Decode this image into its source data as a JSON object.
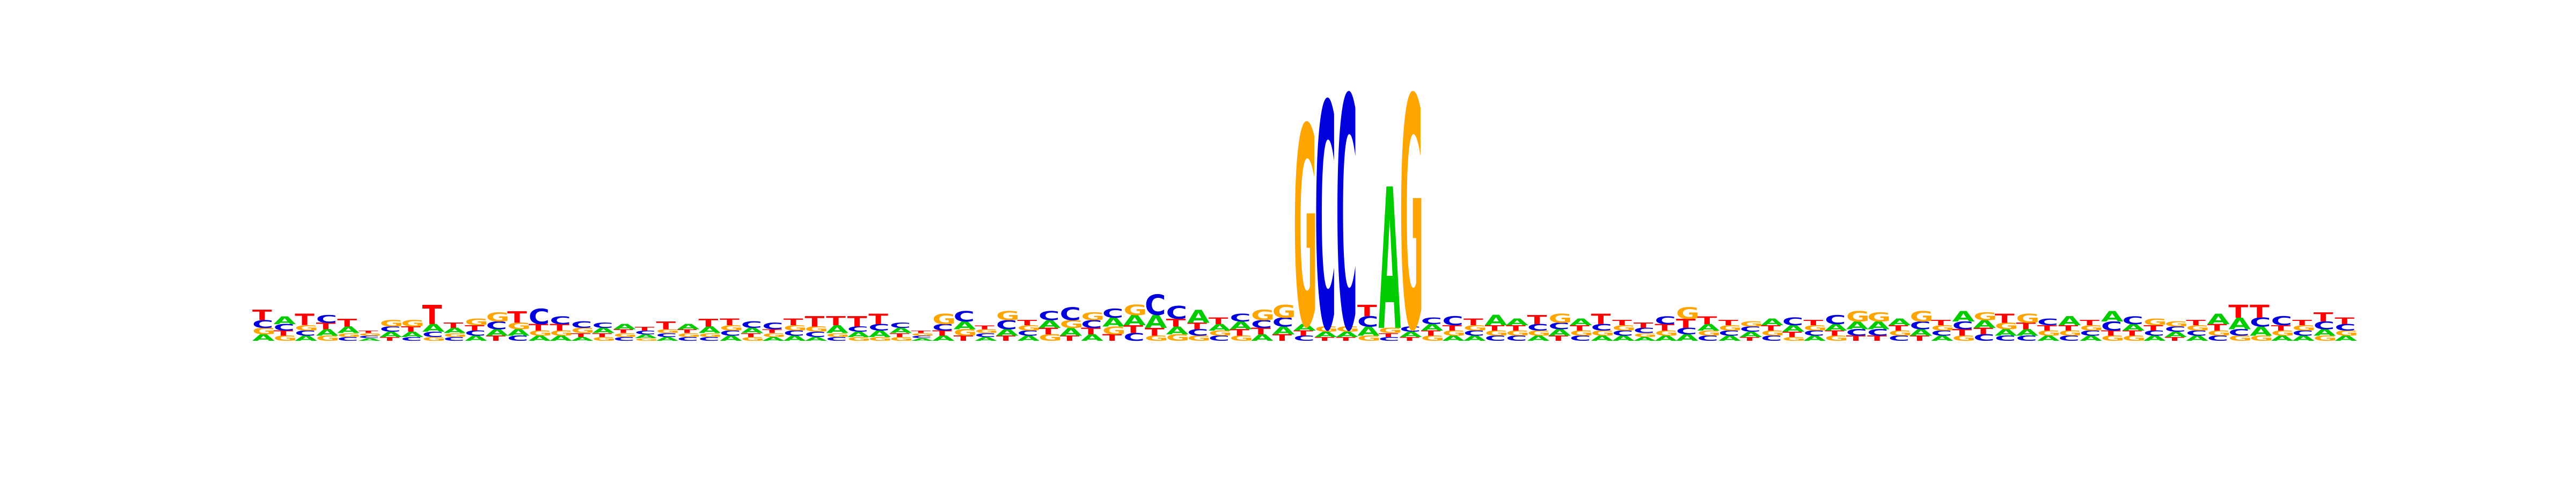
{
  "sequence_logo": {
    "alphabet": [
      "A",
      "C",
      "G",
      "T"
    ],
    "colors": {
      "A": "#00cc00",
      "C": "#0000dd",
      "G": "#ffa500",
      "T": "#ff0000"
    },
    "max_bits": 2,
    "positions": [
      {
        "A": 0.05,
        "C": 0.06,
        "G": 0.05,
        "T": 0.08
      },
      {
        "A": 0.06,
        "C": 0.05,
        "G": 0.04,
        "T": 0.04
      },
      {
        "A": 0.04,
        "C": 0.04,
        "G": 0.04,
        "T": 0.09
      },
      {
        "A": 0.05,
        "C": 0.06,
        "G": 0.04,
        "T": 0.05
      },
      {
        "A": 0.05,
        "C": 0.03,
        "G": 0.03,
        "T": 0.06
      },
      {
        "A": 0.02,
        "C": 0.02,
        "G": 0.02,
        "T": 0.02
      },
      {
        "A": 0.04,
        "C": 0.04,
        "G": 0.05,
        "T": 0.03
      },
      {
        "A": 0.04,
        "C": 0.03,
        "G": 0.05,
        "T": 0.04
      },
      {
        "A": 0.06,
        "C": 0.04,
        "G": 0.03,
        "T": 0.15
      },
      {
        "A": 0.04,
        "C": 0.03,
        "G": 0.03,
        "T": 0.04
      },
      {
        "A": 0.04,
        "C": 0.04,
        "G": 0.05,
        "T": 0.04
      },
      {
        "A": 0.05,
        "C": 0.06,
        "G": 0.07,
        "T": 0.04
      },
      {
        "A": 0.05,
        "C": 0.04,
        "G": 0.05,
        "T": 0.09
      },
      {
        "A": 0.04,
        "C": 0.12,
        "G": 0.04,
        "T": 0.05
      },
      {
        "A": 0.04,
        "C": 0.06,
        "G": 0.04,
        "T": 0.05
      },
      {
        "A": 0.03,
        "C": 0.05,
        "G": 0.04,
        "T": 0.03
      },
      {
        "A": 0.04,
        "C": 0.04,
        "G": 0.03,
        "T": 0.03
      },
      {
        "A": 0.04,
        "C": 0.03,
        "G": 0.03,
        "T": 0.03
      },
      {
        "A": 0.03,
        "C": 0.03,
        "G": 0.02,
        "T": 0.03
      },
      {
        "A": 0.03,
        "C": 0.03,
        "G": 0.03,
        "T": 0.06
      },
      {
        "A": 0.04,
        "C": 0.03,
        "G": 0.03,
        "T": 0.03
      },
      {
        "A": 0.05,
        "C": 0.03,
        "G": 0.03,
        "T": 0.06
      },
      {
        "A": 0.04,
        "C": 0.04,
        "G": 0.04,
        "T": 0.05
      },
      {
        "A": 0.04,
        "C": 0.05,
        "G": 0.03,
        "T": 0.03
      },
      {
        "A": 0.03,
        "C": 0.05,
        "G": 0.03,
        "T": 0.03
      },
      {
        "A": 0.04,
        "C": 0.04,
        "G": 0.04,
        "T": 0.05
      },
      {
        "A": 0.03,
        "C": 0.04,
        "G": 0.04,
        "T": 0.08
      },
      {
        "A": 0.06,
        "C": 0.03,
        "G": 0.03,
        "T": 0.07
      },
      {
        "A": 0.04,
        "C": 0.04,
        "G": 0.03,
        "T": 0.08
      },
      {
        "A": 0.05,
        "C": 0.05,
        "G": 0.03,
        "T": 0.08
      },
      {
        "A": 0.04,
        "C": 0.04,
        "G": 0.03,
        "T": 0.03
      },
      {
        "A": 0.02,
        "C": 0.02,
        "G": 0.02,
        "T": 0.02
      },
      {
        "A": 0.04,
        "C": 0.05,
        "G": 0.08,
        "T": 0.04
      },
      {
        "A": 0.06,
        "C": 0.08,
        "G": 0.05,
        "T": 0.04
      },
      {
        "A": 0.03,
        "C": 0.03,
        "G": 0.03,
        "T": 0.03
      },
      {
        "A": 0.05,
        "C": 0.07,
        "G": 0.07,
        "T": 0.04
      },
      {
        "A": 0.04,
        "C": 0.04,
        "G": 0.04,
        "T": 0.04
      },
      {
        "A": 0.06,
        "C": 0.07,
        "G": 0.05,
        "T": 0.05
      },
      {
        "A": 0.06,
        "C": 0.1,
        "G": 0.06,
        "T": 0.04
      },
      {
        "A": 0.05,
        "C": 0.06,
        "G": 0.06,
        "T": 0.05
      },
      {
        "A": 0.07,
        "C": 0.07,
        "G": 0.06,
        "T": 0.05
      },
      {
        "A": 0.08,
        "C": 0.06,
        "G": 0.08,
        "T": 0.06
      },
      {
        "A": 0.1,
        "C": 0.16,
        "G": 0.04,
        "T": 0.06
      },
      {
        "A": 0.06,
        "C": 0.1,
        "G": 0.05,
        "T": 0.06
      },
      {
        "A": 0.1,
        "C": 0.05,
        "G": 0.04,
        "T": 0.05
      },
      {
        "A": 0.05,
        "C": 0.04,
        "G": 0.04,
        "T": 0.05
      },
      {
        "A": 0.06,
        "C": 0.06,
        "G": 0.04,
        "T": 0.05
      },
      {
        "A": 0.05,
        "C": 0.06,
        "G": 0.08,
        "T": 0.05
      },
      {
        "A": 0.06,
        "C": 0.07,
        "G": 0.1,
        "T": 0.05
      },
      {
        "A": 0.05,
        "C": 0.04,
        "G": 1.55,
        "T": 0.04
      },
      {
        "A": 0.04,
        "C": 1.75,
        "G": 0.04,
        "T": 0.03
      },
      {
        "A": 0.04,
        "C": 1.8,
        "G": 0.04,
        "T": 0.03
      },
      {
        "A": 0.07,
        "C": 0.08,
        "G": 0.04,
        "T": 0.09
      },
      {
        "A": 1.1,
        "C": 0.03,
        "G": 0.04,
        "T": 0.03
      },
      {
        "A": 0.04,
        "C": 0.04,
        "G": 1.8,
        "T": 0.03
      },
      {
        "A": 0.05,
        "C": 0.05,
        "G": 0.04,
        "T": 0.04
      },
      {
        "A": 0.04,
        "C": 0.07,
        "G": 0.04,
        "T": 0.04
      },
      {
        "A": 0.04,
        "C": 0.04,
        "G": 0.04,
        "T": 0.05
      },
      {
        "A": 0.08,
        "C": 0.04,
        "G": 0.04,
        "T": 0.04
      },
      {
        "A": 0.05,
        "C": 0.04,
        "G": 0.04,
        "T": 0.04
      },
      {
        "A": 0.04,
        "C": 0.05,
        "G": 0.04,
        "T": 0.07
      },
      {
        "A": 0.05,
        "C": 0.05,
        "G": 0.07,
        "T": 0.04
      },
      {
        "A": 0.05,
        "C": 0.04,
        "G": 0.04,
        "T": 0.04
      },
      {
        "A": 0.04,
        "C": 0.05,
        "G": 0.04,
        "T": 0.08
      },
      {
        "A": 0.04,
        "C": 0.04,
        "G": 0.04,
        "T": 0.04
      },
      {
        "A": 0.03,
        "C": 0.04,
        "G": 0.03,
        "T": 0.04
      },
      {
        "A": 0.04,
        "C": 0.06,
        "G": 0.04,
        "T": 0.05
      },
      {
        "A": 0.05,
        "C": 0.05,
        "G": 0.09,
        "T": 0.07
      },
      {
        "A": 0.05,
        "C": 0.04,
        "G": 0.04,
        "T": 0.06
      },
      {
        "A": 0.04,
        "C": 0.04,
        "G": 0.04,
        "T": 0.04
      },
      {
        "A": 0.04,
        "C": 0.04,
        "G": 0.04,
        "T": 0.03
      },
      {
        "A": 0.05,
        "C": 0.04,
        "G": 0.04,
        "T": 0.04
      },
      {
        "A": 0.05,
        "C": 0.06,
        "G": 0.03,
        "T": 0.04
      },
      {
        "A": 0.04,
        "C": 0.04,
        "G": 0.04,
        "T": 0.04
      },
      {
        "A": 0.05,
        "C": 0.07,
        "G": 0.04,
        "T": 0.04
      },
      {
        "A": 0.06,
        "C": 0.05,
        "G": 0.08,
        "T": 0.04
      },
      {
        "A": 0.06,
        "C": 0.05,
        "G": 0.07,
        "T": 0.04
      },
      {
        "A": 0.05,
        "C": 0.04,
        "G": 0.04,
        "T": 0.04
      },
      {
        "A": 0.05,
        "C": 0.06,
        "G": 0.08,
        "T": 0.04
      },
      {
        "A": 0.04,
        "C": 0.04,
        "G": 0.04,
        "T": 0.04
      },
      {
        "A": 0.08,
        "C": 0.06,
        "G": 0.04,
        "T": 0.05
      },
      {
        "A": 0.06,
        "C": 0.05,
        "G": 0.06,
        "T": 0.05
      },
      {
        "A": 0.05,
        "C": 0.04,
        "G": 0.05,
        "T": 0.07
      },
      {
        "A": 0.05,
        "C": 0.04,
        "G": 0.07,
        "T": 0.05
      },
      {
        "A": 0.04,
        "C": 0.05,
        "G": 0.04,
        "T": 0.04
      },
      {
        "A": 0.07,
        "C": 0.04,
        "G": 0.04,
        "T": 0.04
      },
      {
        "A": 0.04,
        "C": 0.04,
        "G": 0.04,
        "T": 0.04
      },
      {
        "A": 0.08,
        "C": 0.07,
        "G": 0.04,
        "T": 0.04
      },
      {
        "A": 0.05,
        "C": 0.06,
        "G": 0.04,
        "T": 0.04
      },
      {
        "A": 0.04,
        "C": 0.04,
        "G": 0.05,
        "T": 0.04
      },
      {
        "A": 0.04,
        "C": 0.04,
        "G": 0.04,
        "T": 0.03
      },
      {
        "A": 0.04,
        "C": 0.04,
        "G": 0.04,
        "T": 0.04
      },
      {
        "A": 0.08,
        "C": 0.04,
        "G": 0.04,
        "T": 0.05
      },
      {
        "A": 0.09,
        "C": 0.05,
        "G": 0.04,
        "T": 0.1
      },
      {
        "A": 0.07,
        "C": 0.07,
        "G": 0.04,
        "T": 0.1
      },
      {
        "A": 0.04,
        "C": 0.07,
        "G": 0.04,
        "T": 0.04
      },
      {
        "A": 0.04,
        "C": 0.04,
        "G": 0.04,
        "T": 0.04
      },
      {
        "A": 0.05,
        "C": 0.06,
        "G": 0.04,
        "T": 0.07
      },
      {
        "A": 0.04,
        "C": 0.05,
        "G": 0.04,
        "T": 0.05
      }
    ]
  }
}
